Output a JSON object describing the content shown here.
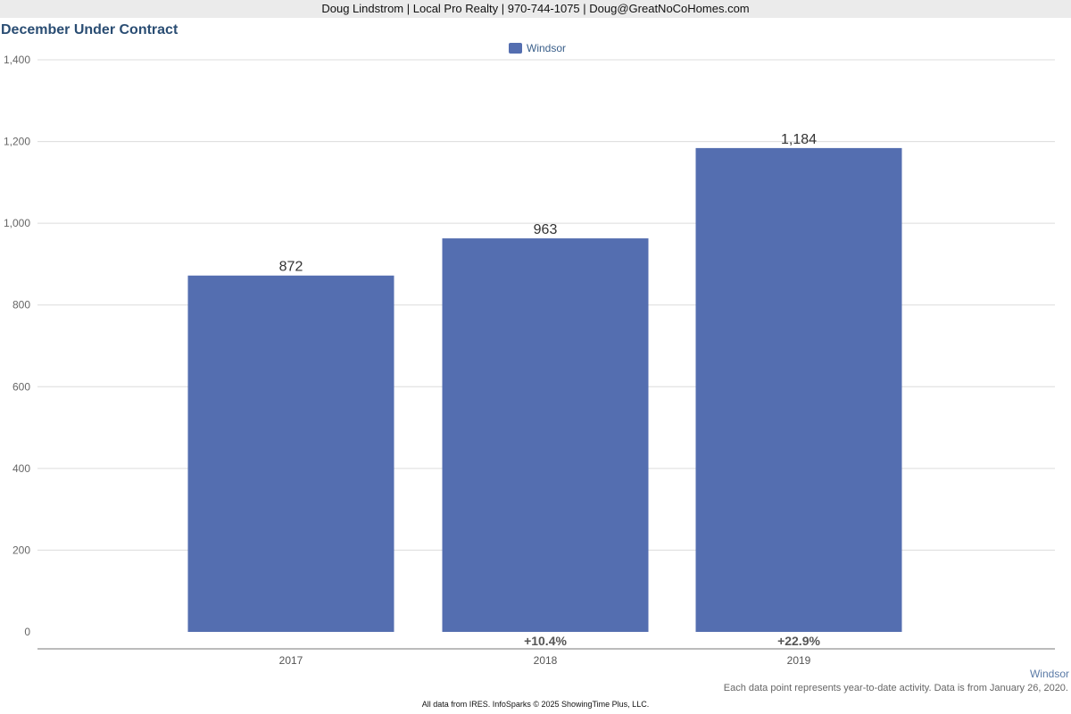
{
  "header": {
    "contact_line": "Doug Lindstrom | Local Pro Realty | 970-744-1075 | Doug@GreatNoCoHomes.com"
  },
  "chart_data": {
    "type": "bar",
    "title": "December Under Contract",
    "xlabel": "",
    "ylabel": "",
    "categories": [
      "2017",
      "2018",
      "2019"
    ],
    "series": [
      {
        "name": "Windsor",
        "values": [
          872,
          963,
          1184
        ],
        "color": "#546eb0"
      }
    ],
    "data_labels": [
      "872",
      "963",
      "1,184"
    ],
    "change_labels": [
      "",
      "+10.4%",
      "+22.9%"
    ],
    "ylim": [
      0,
      1400
    ],
    "yticks": [
      0,
      200,
      400,
      600,
      800,
      1000,
      1200,
      1400
    ],
    "ytick_labels": [
      "0",
      "200",
      "400",
      "600",
      "800",
      "1,000",
      "1,200",
      "1,400"
    ],
    "grid": true,
    "legend_position": "top-center"
  },
  "footer": {
    "series_tag": "Windsor",
    "note": "Each data point represents year-to-date activity. Data is from January 26, 2020.",
    "source": "All data from IRES. InfoSparks © 2025 ShowingTime Plus, LLC."
  }
}
